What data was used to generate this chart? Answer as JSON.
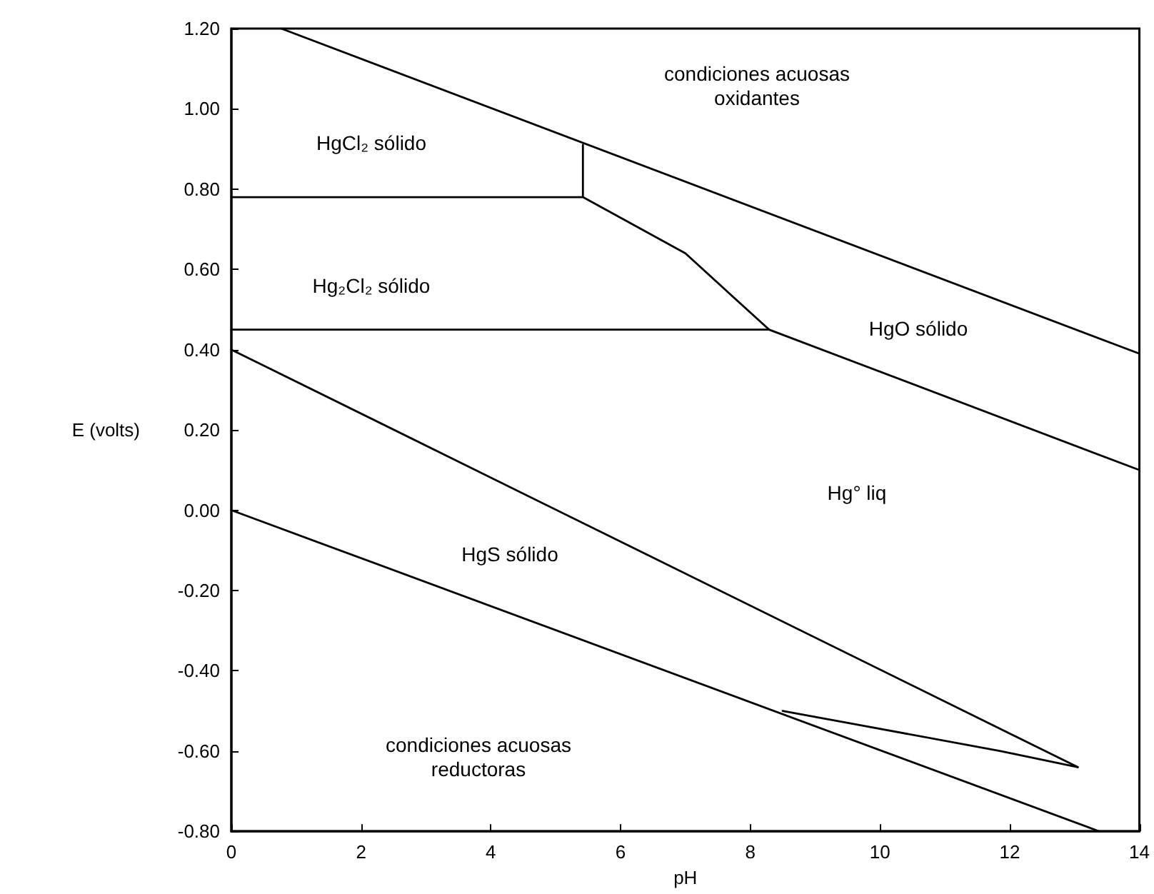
{
  "chart_data": {
    "type": "line",
    "xlabel": "pH",
    "ylabel": "E (volts)",
    "xlim": [
      0,
      14
    ],
    "xticks": [
      0,
      2,
      4,
      6,
      8,
      10,
      12,
      14
    ],
    "ylim": [
      -0.8,
      1.2
    ],
    "yticks": [
      {
        "value": 1.2,
        "label": "1.20"
      },
      {
        "value": 1.0,
        "label": "1.00"
      },
      {
        "value": 0.8,
        "label": "0.80"
      },
      {
        "value": 0.6,
        "label": "0.60"
      },
      {
        "value": 0.4,
        "label": "0.40"
      },
      {
        "value": 0.2,
        "label": "0.20"
      },
      {
        "value": 0,
        "label": "0.00"
      },
      {
        "value": -0.2,
        "label": "-0.20"
      },
      {
        "value": -0.4,
        "label": "-0.40"
      },
      {
        "value": -0.6,
        "label": "-0.60"
      },
      {
        "value": -0.8,
        "label": "-0.80"
      }
    ],
    "grid": false,
    "marker": "none",
    "line_style": "solid",
    "series": [
      {
        "color": "#000000",
        "x": [
          0.77,
          14
        ],
        "values": [
          1.2,
          0.39
        ]
      },
      {
        "color": "#000000",
        "x": [
          5.42,
          5.42,
          0,
          5.42,
          7.0,
          8.29,
          14
        ],
        "values": [
          0.91,
          0.78,
          0.78,
          0.78,
          0.64,
          0.45,
          0.1
        ]
      },
      {
        "color": "#000000",
        "x": [
          0,
          8.29
        ],
        "values": [
          0.45,
          0.45
        ]
      },
      {
        "color": "#000000",
        "x": [
          0,
          13.05
        ],
        "values": [
          0.4,
          -0.64
        ]
      },
      {
        "color": "#000000",
        "x": [
          8.5,
          11.86,
          13.05
        ],
        "values": [
          -0.5,
          -0.6,
          -0.64
        ]
      },
      {
        "color": "#000000",
        "x": [
          0,
          13.38
        ],
        "values": [
          0,
          -0.8
        ]
      }
    ],
    "annotations": [
      "condiciones acuosas\noxidantes",
      "HgCl₂ sólido",
      "Hg₂Cl₂ sólido",
      "HgO sólido",
      "Hg° liq",
      "HgS sólido",
      "condiciones acuosas\nreductoras"
    ]
  }
}
